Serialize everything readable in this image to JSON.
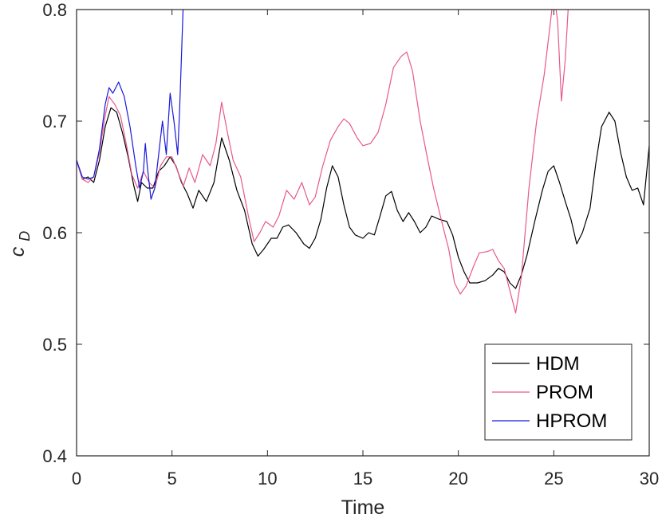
{
  "chart_data": {
    "type": "line",
    "xlabel": "Time",
    "ylabel_main": "c",
    "ylabel_sub": "D",
    "xlim": [
      0,
      30
    ],
    "ylim": [
      0.4,
      0.8
    ],
    "xticks": [
      0,
      5,
      10,
      15,
      20,
      25,
      30
    ],
    "xtick_labels": [
      "0",
      "5",
      "10",
      "15",
      "20",
      "25",
      "30"
    ],
    "yticks": [
      0.4,
      0.5,
      0.6,
      0.7,
      0.8
    ],
    "ytick_labels": [
      "0.4",
      "0.5",
      "0.6",
      "0.7",
      "0.8"
    ],
    "grid": false,
    "legend_position": "bottom-right",
    "series": [
      {
        "name": "HDM",
        "color": "#000000",
        "points": [
          [
            0,
            0.665
          ],
          [
            0.3,
            0.648
          ],
          [
            0.6,
            0.65
          ],
          [
            0.9,
            0.645
          ],
          [
            1.2,
            0.665
          ],
          [
            1.5,
            0.695
          ],
          [
            1.8,
            0.712
          ],
          [
            2.1,
            0.708
          ],
          [
            2.4,
            0.69
          ],
          [
            2.7,
            0.668
          ],
          [
            3.0,
            0.642
          ],
          [
            3.2,
            0.628
          ],
          [
            3.4,
            0.645
          ],
          [
            3.7,
            0.64
          ],
          [
            4.0,
            0.64
          ],
          [
            4.3,
            0.655
          ],
          [
            4.6,
            0.66
          ],
          [
            4.9,
            0.668
          ],
          [
            5.2,
            0.66
          ],
          [
            5.5,
            0.645
          ],
          [
            5.8,
            0.635
          ],
          [
            6.1,
            0.622
          ],
          [
            6.4,
            0.638
          ],
          [
            6.8,
            0.628
          ],
          [
            7.2,
            0.645
          ],
          [
            7.6,
            0.685
          ],
          [
            8.0,
            0.665
          ],
          [
            8.4,
            0.638
          ],
          [
            8.8,
            0.62
          ],
          [
            9.2,
            0.59
          ],
          [
            9.5,
            0.579
          ],
          [
            9.8,
            0.585
          ],
          [
            10.2,
            0.595
          ],
          [
            10.5,
            0.595
          ],
          [
            10.8,
            0.605
          ],
          [
            11.1,
            0.607
          ],
          [
            11.5,
            0.6
          ],
          [
            11.9,
            0.59
          ],
          [
            12.2,
            0.586
          ],
          [
            12.5,
            0.595
          ],
          [
            12.8,
            0.612
          ],
          [
            13.1,
            0.64
          ],
          [
            13.4,
            0.66
          ],
          [
            13.7,
            0.65
          ],
          [
            14.0,
            0.625
          ],
          [
            14.3,
            0.605
          ],
          [
            14.6,
            0.598
          ],
          [
            15.0,
            0.595
          ],
          [
            15.3,
            0.6
          ],
          [
            15.6,
            0.598
          ],
          [
            15.9,
            0.615
          ],
          [
            16.2,
            0.633
          ],
          [
            16.5,
            0.637
          ],
          [
            16.8,
            0.62
          ],
          [
            17.1,
            0.61
          ],
          [
            17.4,
            0.618
          ],
          [
            17.7,
            0.61
          ],
          [
            18.0,
            0.6
          ],
          [
            18.3,
            0.605
          ],
          [
            18.6,
            0.615
          ],
          [
            19.0,
            0.612
          ],
          [
            19.4,
            0.61
          ],
          [
            19.7,
            0.598
          ],
          [
            20.0,
            0.578
          ],
          [
            20.3,
            0.565
          ],
          [
            20.6,
            0.555
          ],
          [
            21.0,
            0.555
          ],
          [
            21.4,
            0.557
          ],
          [
            21.8,
            0.562
          ],
          [
            22.1,
            0.568
          ],
          [
            22.4,
            0.565
          ],
          [
            22.7,
            0.555
          ],
          [
            23.0,
            0.55
          ],
          [
            23.3,
            0.562
          ],
          [
            23.6,
            0.58
          ],
          [
            24.0,
            0.61
          ],
          [
            24.4,
            0.638
          ],
          [
            24.7,
            0.655
          ],
          [
            25.0,
            0.66
          ],
          [
            25.3,
            0.645
          ],
          [
            25.6,
            0.628
          ],
          [
            25.9,
            0.612
          ],
          [
            26.2,
            0.59
          ],
          [
            26.5,
            0.6
          ],
          [
            26.9,
            0.622
          ],
          [
            27.2,
            0.662
          ],
          [
            27.5,
            0.695
          ],
          [
            27.9,
            0.708
          ],
          [
            28.2,
            0.7
          ],
          [
            28.5,
            0.672
          ],
          [
            28.8,
            0.65
          ],
          [
            29.1,
            0.638
          ],
          [
            29.4,
            0.64
          ],
          [
            29.7,
            0.625
          ],
          [
            30.0,
            0.678
          ]
        ]
      },
      {
        "name": "PROM",
        "color": "#e8588d",
        "points": [
          [
            0,
            0.665
          ],
          [
            0.3,
            0.648
          ],
          [
            0.6,
            0.645
          ],
          [
            0.9,
            0.65
          ],
          [
            1.2,
            0.672
          ],
          [
            1.5,
            0.705
          ],
          [
            1.7,
            0.722
          ],
          [
            2.0,
            0.715
          ],
          [
            2.3,
            0.705
          ],
          [
            2.6,
            0.68
          ],
          [
            2.9,
            0.652
          ],
          [
            3.2,
            0.64
          ],
          [
            3.5,
            0.655
          ],
          [
            3.8,
            0.645
          ],
          [
            4.1,
            0.64
          ],
          [
            4.4,
            0.66
          ],
          [
            4.7,
            0.668
          ],
          [
            5.0,
            0.668
          ],
          [
            5.3,
            0.655
          ],
          [
            5.6,
            0.642
          ],
          [
            5.9,
            0.658
          ],
          [
            6.2,
            0.645
          ],
          [
            6.6,
            0.67
          ],
          [
            7.0,
            0.66
          ],
          [
            7.3,
            0.68
          ],
          [
            7.6,
            0.717
          ],
          [
            7.9,
            0.69
          ],
          [
            8.2,
            0.665
          ],
          [
            8.6,
            0.65
          ],
          [
            9.0,
            0.615
          ],
          [
            9.3,
            0.592
          ],
          [
            9.6,
            0.6
          ],
          [
            9.9,
            0.61
          ],
          [
            10.3,
            0.605
          ],
          [
            10.6,
            0.615
          ],
          [
            11.0,
            0.638
          ],
          [
            11.4,
            0.63
          ],
          [
            11.8,
            0.645
          ],
          [
            12.2,
            0.625
          ],
          [
            12.5,
            0.632
          ],
          [
            12.9,
            0.66
          ],
          [
            13.3,
            0.683
          ],
          [
            13.7,
            0.695
          ],
          [
            14.0,
            0.702
          ],
          [
            14.3,
            0.698
          ],
          [
            14.7,
            0.685
          ],
          [
            15.0,
            0.678
          ],
          [
            15.4,
            0.68
          ],
          [
            15.8,
            0.69
          ],
          [
            16.2,
            0.715
          ],
          [
            16.6,
            0.748
          ],
          [
            17.0,
            0.758
          ],
          [
            17.3,
            0.762
          ],
          [
            17.6,
            0.745
          ],
          [
            18.0,
            0.7
          ],
          [
            18.4,
            0.665
          ],
          [
            18.7,
            0.64
          ],
          [
            19.1,
            0.612
          ],
          [
            19.5,
            0.585
          ],
          [
            19.8,
            0.555
          ],
          [
            20.1,
            0.545
          ],
          [
            20.4,
            0.552
          ],
          [
            20.8,
            0.57
          ],
          [
            21.1,
            0.582
          ],
          [
            21.5,
            0.583
          ],
          [
            21.8,
            0.585
          ],
          [
            22.1,
            0.575
          ],
          [
            22.4,
            0.568
          ],
          [
            22.7,
            0.548
          ],
          [
            23.0,
            0.528
          ],
          [
            23.3,
            0.56
          ],
          [
            23.7,
            0.64
          ],
          [
            24.1,
            0.7
          ],
          [
            24.5,
            0.742
          ],
          [
            24.8,
            0.785
          ],
          [
            25.0,
            0.815
          ],
          [
            25.2,
            0.79
          ],
          [
            25.4,
            0.718
          ],
          [
            25.6,
            0.755
          ],
          [
            25.8,
            0.815
          ]
        ]
      },
      {
        "name": "HPROM",
        "color": "#1a1adb",
        "points": [
          [
            0,
            0.665
          ],
          [
            0.3,
            0.65
          ],
          [
            0.6,
            0.648
          ],
          [
            0.9,
            0.65
          ],
          [
            1.2,
            0.675
          ],
          [
            1.5,
            0.715
          ],
          [
            1.7,
            0.73
          ],
          [
            1.9,
            0.725
          ],
          [
            2.2,
            0.735
          ],
          [
            2.5,
            0.722
          ],
          [
            2.8,
            0.695
          ],
          [
            3.1,
            0.66
          ],
          [
            3.3,
            0.64
          ],
          [
            3.5,
            0.655
          ],
          [
            3.6,
            0.68
          ],
          [
            3.7,
            0.66
          ],
          [
            3.9,
            0.63
          ],
          [
            4.1,
            0.64
          ],
          [
            4.3,
            0.67
          ],
          [
            4.5,
            0.7
          ],
          [
            4.7,
            0.67
          ],
          [
            4.9,
            0.725
          ],
          [
            5.1,
            0.7
          ],
          [
            5.3,
            0.67
          ],
          [
            5.4,
            0.71
          ],
          [
            5.5,
            0.76
          ],
          [
            5.6,
            0.81
          ]
        ]
      }
    ]
  }
}
